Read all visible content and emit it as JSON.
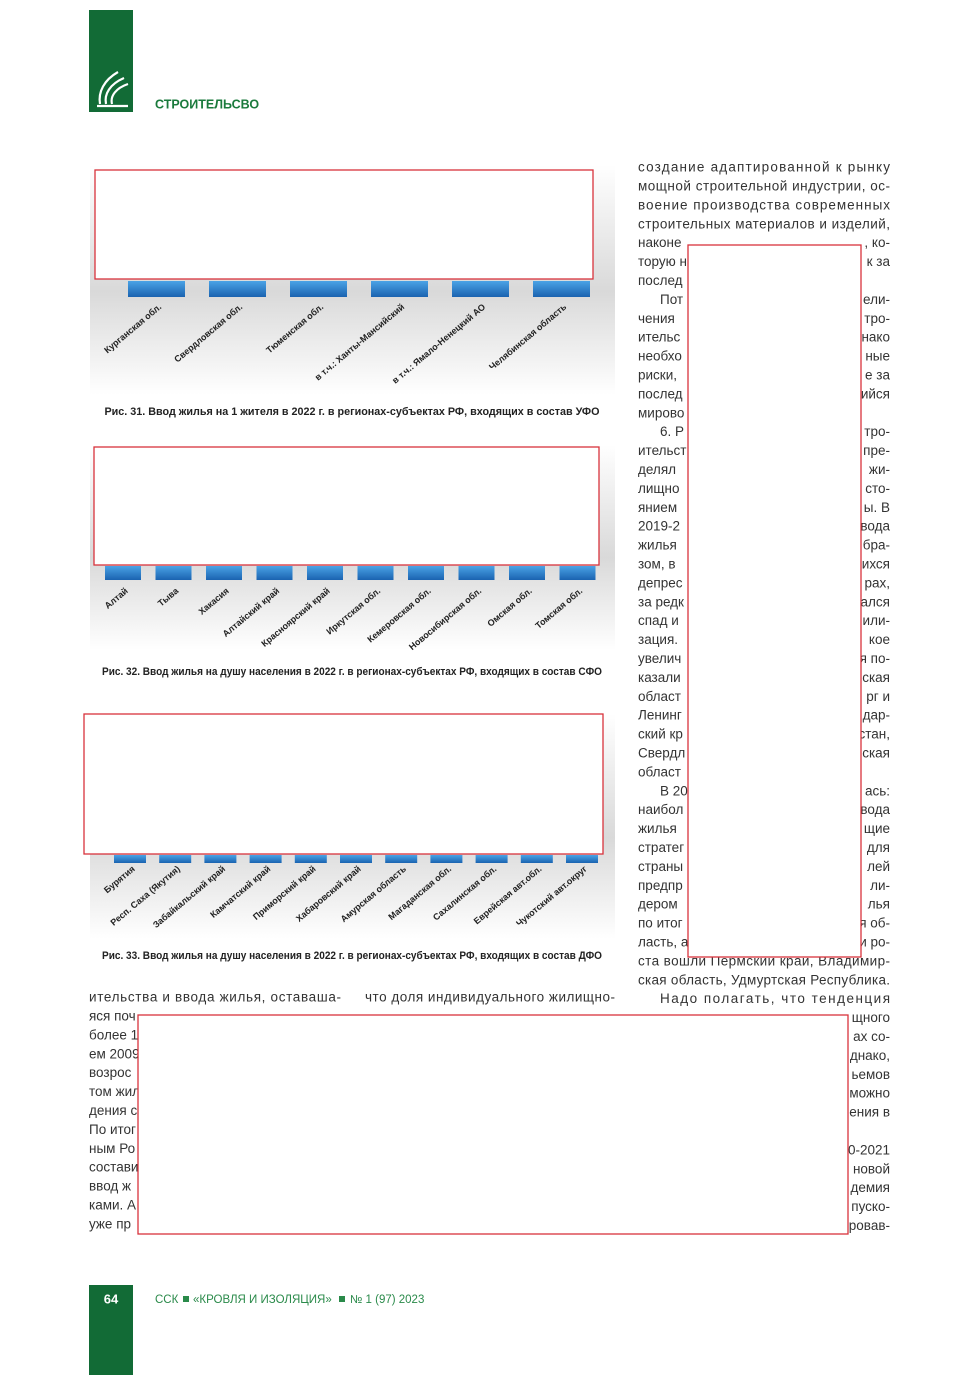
{
  "header": {
    "section": "СТРОИТЕЛЬСВО"
  },
  "figures": [
    {
      "caption": "Рис. 31. Ввод жилья на 1 жителя в 2022 г. в регионах-субъектах РФ, входящих в состав УФО",
      "labels": [
        "Курганская обл.",
        "Свердловская обл.",
        "Тюменская обл.",
        "в т.ч.: Ханты-Мансийский",
        "в т.ч.: Ямало-Ненецкий АО",
        "Челябинская область"
      ]
    },
    {
      "caption": "Рис. 32. Ввод жилья на душу населения в 2022 г. в регионах-субъектах РФ, входящих в состав СФО",
      "labels": [
        "Алтай",
        "Тыва",
        "Хакасия",
        "Алтайский край",
        "Красноярский край",
        "Иркутская обл.",
        "Кемеровская обл.",
        "Новосибирская обл.",
        "Омская обл.",
        "Томская обл."
      ]
    },
    {
      "caption": "Рис. 33. Ввод жилья на душу населения в 2022 г. в регионах-субъектах РФ, входящих в состав ДФО",
      "labels": [
        "Бурятия",
        "Респ. Саха (Якутия)",
        "Забайкальский край",
        "Камчатский край",
        "Приморский край",
        "Хабаровский край",
        "Амурская область",
        "Магаданская обл.",
        "Сахалинская обл.",
        "Еврейская авт.обл.",
        "Чукотский авт.округ"
      ]
    }
  ],
  "right_column": {
    "lines": [
      {
        "text": "создание адаптированной к рынку"
      },
      {
        "text": "мощной строительной индустрии, ос-"
      },
      {
        "text": "воение производства современных"
      },
      {
        "text": "строительных материалов и изделий,"
      },
      {
        "left": "наконе",
        "right": ", ко-"
      },
      {
        "left": "торую н",
        "right": "к за"
      },
      {
        "left": "послед"
      },
      {
        "left": "Пот",
        "right": "ели-"
      },
      {
        "left": "чения",
        "right": "тро-"
      },
      {
        "left": "ительс",
        "right": "нако"
      },
      {
        "left": "необхо",
        "right": "ные"
      },
      {
        "left": "риски,",
        "right": "е за"
      },
      {
        "left": "послед",
        "right": "ийся"
      },
      {
        "left": "мирово"
      },
      {
        "left": "6. Р",
        "right": "тро-"
      },
      {
        "left": "ительст",
        "right": "пре-"
      },
      {
        "left": "делял",
        "right": "жи-"
      },
      {
        "left": "лищно",
        "right": "сто-"
      },
      {
        "left": "янием",
        "right": "ы. В"
      },
      {
        "left": "2019-2",
        "right": "вода"
      },
      {
        "left": "жилья",
        "right": "бра-"
      },
      {
        "left": "зом, в",
        "right": "ихся"
      },
      {
        "left": "депрес",
        "right": "рах,"
      },
      {
        "left": "за редк",
        "right": "ался"
      },
      {
        "left": "спад и",
        "right": "или-"
      },
      {
        "left": "зация.",
        "right": "кое"
      },
      {
        "left": "увелич",
        "right": "я по-"
      },
      {
        "left": "казали",
        "right": "ская"
      },
      {
        "left": "област",
        "right": "рг и"
      },
      {
        "left": "Ленинг",
        "right": "дар-"
      },
      {
        "left": "ский кр",
        "right": "стан,"
      },
      {
        "left": "Свердл",
        "right": "ская"
      },
      {
        "left": "област"
      },
      {
        "left": "В 20",
        "right": "ась:"
      },
      {
        "left": "наибол",
        "right": "вода"
      },
      {
        "left": "жилья",
        "right": "щие"
      },
      {
        "left": "стратег",
        "right": "для"
      },
      {
        "left": "страны",
        "right": "лей"
      },
      {
        "left": "предпр",
        "right": "ли-"
      },
      {
        "left": "дером",
        "right": "лья"
      },
      {
        "left": "по итог",
        "right": "я об-"
      },
      {
        "left": "ласть, а",
        "right": "и ро-"
      },
      {
        "text": "ста вошли Пермский край, Владимир-"
      },
      {
        "text": "ская область, Удмуртская Республика."
      },
      {
        "text": "Надо полагать, что тенденция"
      },
      {
        "right": "щного"
      },
      {
        "right": "ах со-"
      },
      {
        "right": "днако,"
      },
      {
        "right": "ьемов"
      },
      {
        "right": "можно"
      },
      {
        "right": "ения в"
      }
    ],
    "lines_end": [
      {
        "right": "0-2021"
      },
      {
        "right": "новой"
      },
      {
        "right": "демия"
      },
      {
        "right": "пуско-"
      },
      {
        "right": "ровав-"
      }
    ]
  },
  "left_column": {
    "lines": [
      "ительства и ввода жилья, оставаша-",
      "яся поч",
      "более 1",
      "ем 2009",
      "возрос",
      "том жил",
      "дения с",
      "По итог",
      "ным Ро",
      "состави",
      "ввод ж",
      "ками. А",
      "уже пр"
    ]
  },
  "middle_column": {
    "lines": [
      "что доля индивидуального жилищно-"
    ]
  },
  "footer": {
    "page": "64",
    "publisher": "ССК",
    "journal": "«КРОВЛЯ И ИЗОЛЯЦИЯ»",
    "issue": "№ 1 (97) 2023"
  }
}
